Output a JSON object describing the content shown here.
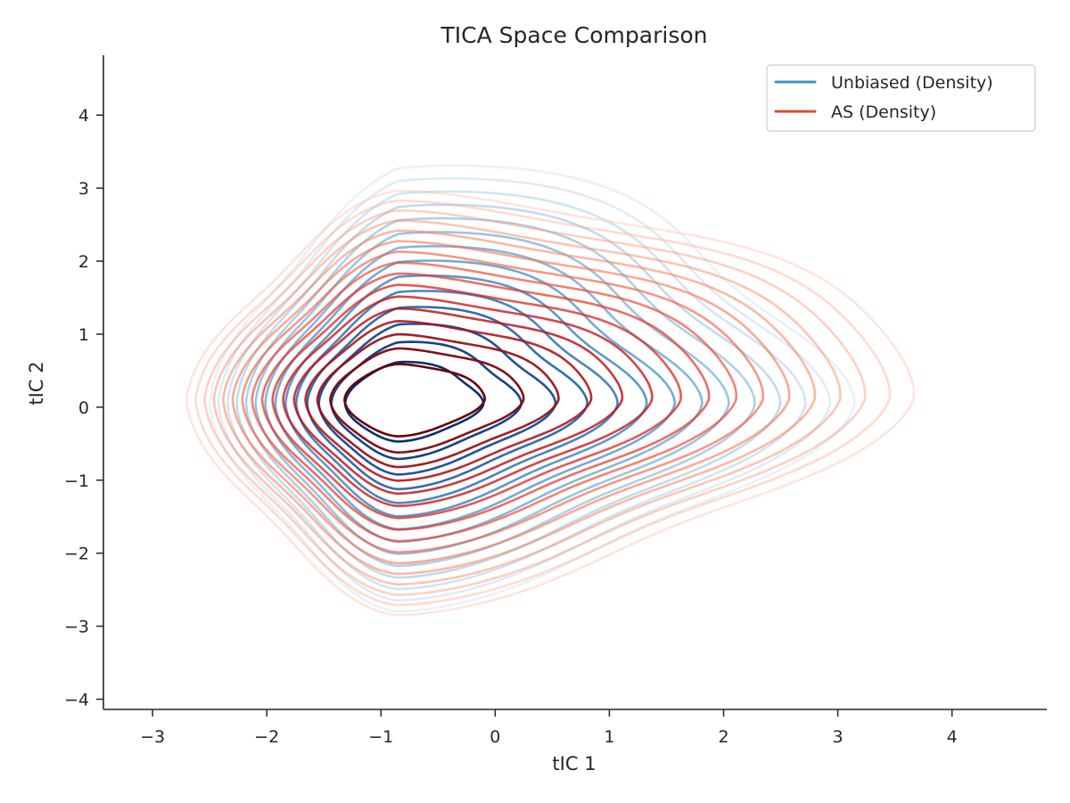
{
  "chart_data": {
    "type": "contour",
    "title": "TICA Space Comparison",
    "xlabel": "tIC 1",
    "ylabel": "tIC 2",
    "xlim": [
      -3.43,
      4.83
    ],
    "ylim": [
      -4.14,
      4.82
    ],
    "xticks": [
      -3,
      -2,
      -1,
      0,
      1,
      2,
      3,
      4
    ],
    "yticks": [
      -4,
      -3,
      -2,
      -1,
      0,
      1,
      2,
      3,
      4
    ],
    "xtick_labels": [
      "−3",
      "−2",
      "−1",
      "0",
      "1",
      "2",
      "3",
      "4"
    ],
    "ytick_labels": [
      "−4",
      "−3",
      "−2",
      "−1",
      "0",
      "1",
      "2",
      "3",
      "4"
    ],
    "grid": false,
    "legend_position": "top-right",
    "series": [
      {
        "name": "Unbiased (Density)",
        "color": "#4292c6",
        "colormap": "Blues",
        "kind": "density contours",
        "levels": 14,
        "peak": [
          -0.85,
          0.05
        ],
        "extent_x": [
          -2.5,
          2.85
        ],
        "extent_y": [
          -2.8,
          3.1
        ],
        "secondary_modes": [
          [
            0.4,
            2.2
          ],
          [
            2.0,
            0.2
          ]
        ]
      },
      {
        "name": "AS (Density)",
        "color": "#e34a33",
        "colormap": "Reds",
        "kind": "density contours",
        "levels": 16,
        "peak": [
          -0.85,
          0.1
        ],
        "extent_x": [
          -2.7,
          3.25
        ],
        "extent_y": [
          -2.85,
          2.95
        ],
        "secondary_modes": [
          [
            0.6,
            1.3
          ],
          [
            2.2,
            0.1
          ]
        ]
      }
    ]
  }
}
